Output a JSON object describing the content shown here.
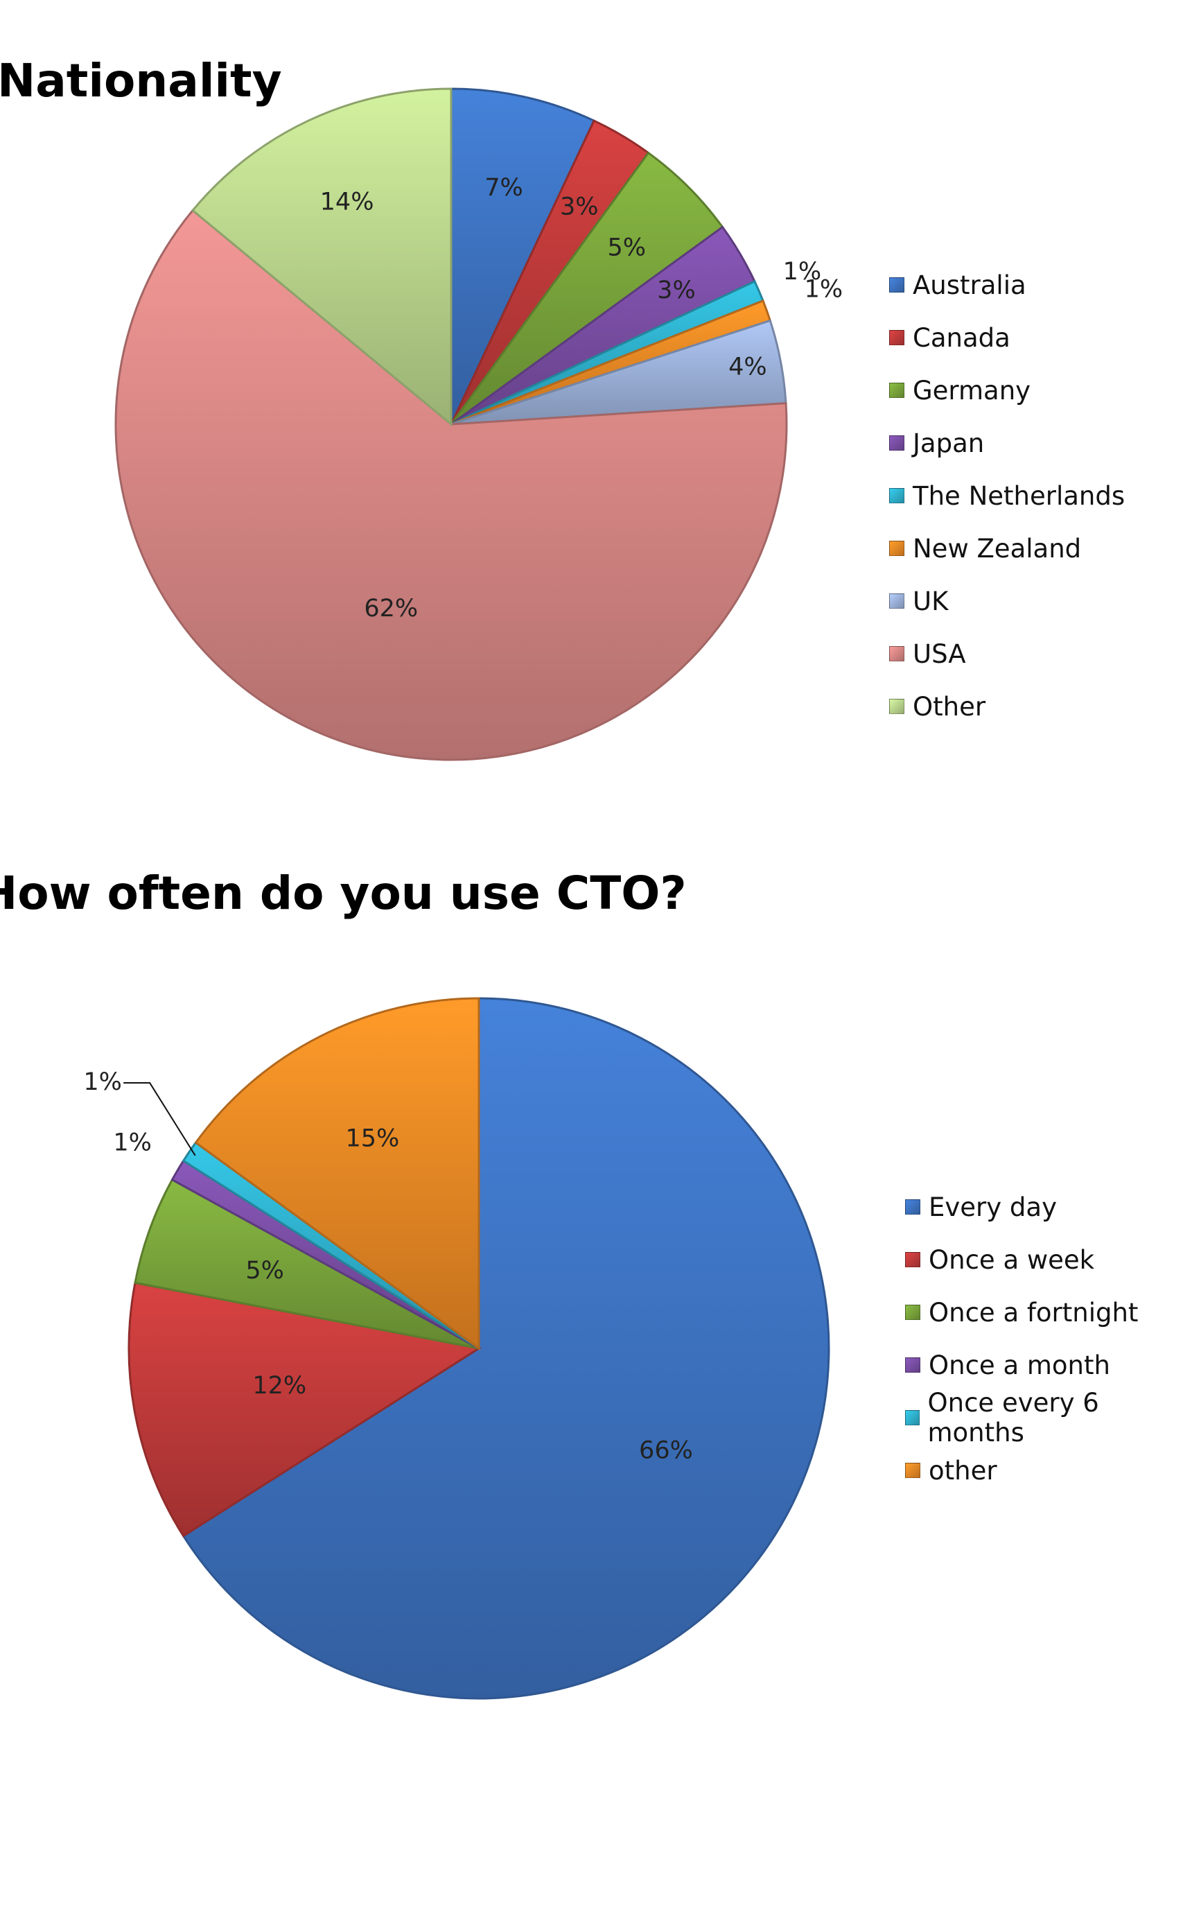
{
  "chart_data": [
    {
      "type": "pie",
      "title": "Nationality",
      "categories": [
        "Australia",
        "Canada",
        "Germany",
        "Japan",
        "The Netherlands",
        "New Zealand",
        "UK",
        "USA",
        "Other"
      ],
      "values": [
        7,
        3,
        5,
        3,
        1,
        1,
        4,
        62,
        14
      ],
      "data_labels": [
        "7%",
        "3%",
        "5%",
        "3%",
        "1%",
        "1%",
        "4%",
        "62%",
        "14%"
      ],
      "colors": [
        "#3e74c3",
        "#c23b3b",
        "#7aa63c",
        "#7b4fa6",
        "#2fb3cf",
        "#ef8a25",
        "#9db3dc",
        "#d98886",
        "#bcd88e"
      ],
      "legend_position": "right"
    },
    {
      "type": "pie",
      "title": "How often do you use CTO?",
      "categories": [
        "Every day",
        "Once a week",
        "Once a fortnight",
        "Once a month",
        "Once every 6 months",
        "other"
      ],
      "values": [
        66,
        12,
        5,
        1,
        1,
        15
      ],
      "data_labels": [
        "66%",
        "12%",
        "5%",
        "1%",
        "1%",
        "15%"
      ],
      "colors": [
        "#3e74c3",
        "#c23b3b",
        "#7aa63c",
        "#7b4fa6",
        "#2fb3cf",
        "#ef8a25"
      ],
      "legend_position": "right"
    }
  ]
}
